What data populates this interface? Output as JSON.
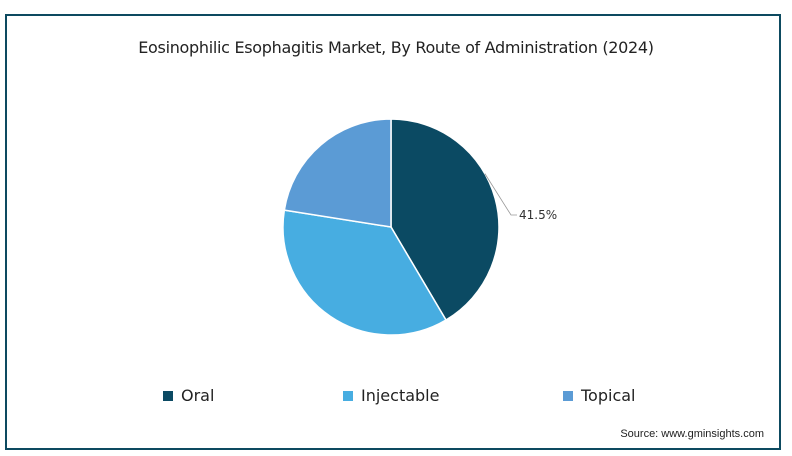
{
  "chart_data": {
    "type": "pie",
    "title": "Eosinophilic Esophagitis Market, By Route of Administration (2024)",
    "slices": [
      {
        "label": "Oral",
        "value": 41.5,
        "color": "#0b4a63",
        "data_label": "41.5%"
      },
      {
        "label": "Injectable",
        "value": 36.0,
        "color": "#47ade1"
      },
      {
        "label": "Topical",
        "value": 22.5,
        "color": "#5b9bd5"
      }
    ],
    "start_angle": "top, clockwise",
    "legend_position": "bottom"
  },
  "source": "Source: www.gminsights.com"
}
